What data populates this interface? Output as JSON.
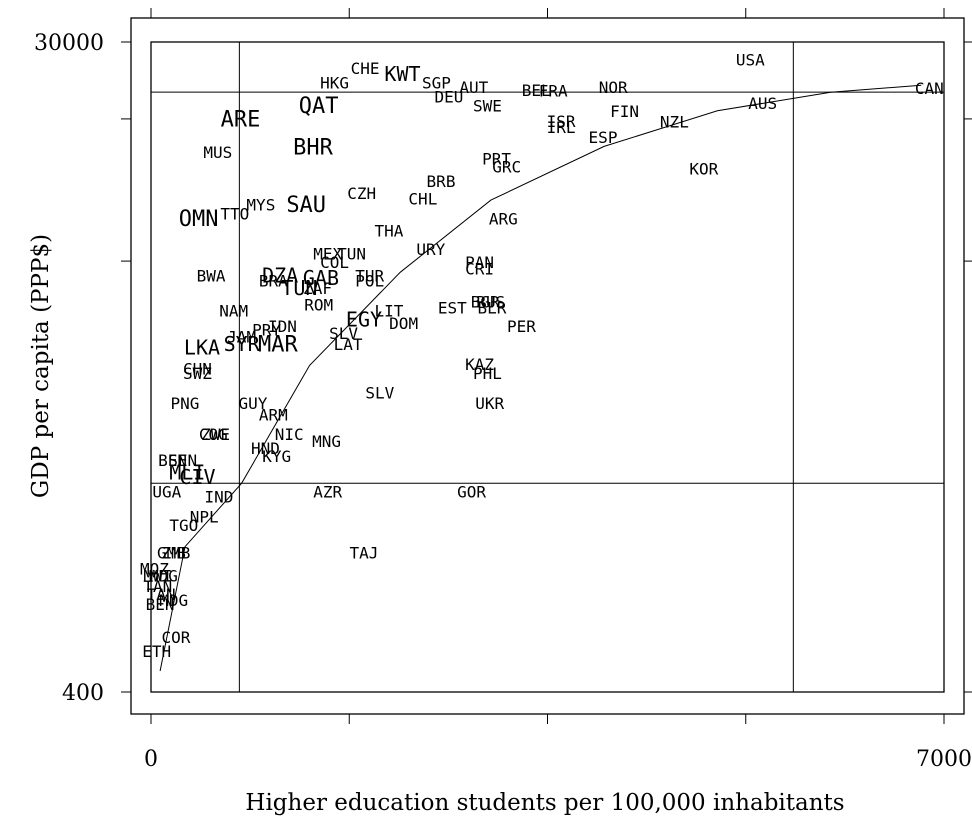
{
  "chart_data": {
    "type": "scatter",
    "title": "",
    "xlabel": "Higher education students per 100,000 inhabitants",
    "ylabel": "GDP per capita (PPP$)",
    "xlim": [
      0,
      7000
    ],
    "ylim": [
      400,
      30000
    ],
    "yscale": "log",
    "x_tick_labels": [
      {
        "value": 0,
        "label": "0"
      },
      {
        "value": 7000,
        "label": "7000"
      }
    ],
    "y_tick_labels": [
      {
        "value": 400,
        "label": "400"
      },
      {
        "value": 30000,
        "label": "30000"
      }
    ],
    "x_tick_values": [
      0,
      1750,
      3500,
      5250,
      7000
    ],
    "y_tick_values": [
      400,
      7000,
      18000,
      30000
    ],
    "reference_lines": {
      "vertical": [
        780,
        5670
      ],
      "horizontal": [
        1600,
        21500
      ]
    },
    "fit_curve": {
      "points": [
        [
          80,
          460
        ],
        [
          300,
          1050
        ],
        [
          800,
          1600
        ],
        [
          1400,
          3500
        ],
        [
          2200,
          6500
        ],
        [
          3000,
          10500
        ],
        [
          4000,
          15000
        ],
        [
          5000,
          19000
        ],
        [
          6000,
          21500
        ],
        [
          6800,
          22500
        ]
      ]
    },
    "points": [
      {
        "label": "USA",
        "x": 5290,
        "y": 26400,
        "size": 16
      },
      {
        "label": "CAN",
        "x": 6870,
        "y": 21900,
        "size": 16
      },
      {
        "label": "CHE",
        "x": 1890,
        "y": 25000,
        "size": 16
      },
      {
        "label": "KWT",
        "x": 2220,
        "y": 24000,
        "size": 20
      },
      {
        "label": "HKG",
        "x": 1620,
        "y": 22700,
        "size": 16
      },
      {
        "label": "SGP",
        "x": 2520,
        "y": 22700,
        "size": 16
      },
      {
        "label": "AUT",
        "x": 2850,
        "y": 22000,
        "size": 16
      },
      {
        "label": "NOR",
        "x": 4080,
        "y": 22000,
        "size": 16
      },
      {
        "label": "FRA",
        "x": 3550,
        "y": 21500,
        "size": 16
      },
      {
        "label": "BEL",
        "x": 3400,
        "y": 21600,
        "size": 16
      },
      {
        "label": "DEU",
        "x": 2630,
        "y": 20700,
        "size": 16
      },
      {
        "label": "SWE",
        "x": 2970,
        "y": 19500,
        "size": 16
      },
      {
        "label": "AUS",
        "x": 5400,
        "y": 19800,
        "size": 16
      },
      {
        "label": "FIN",
        "x": 4180,
        "y": 18800,
        "size": 16
      },
      {
        "label": "NZL",
        "x": 4620,
        "y": 17500,
        "size": 16
      },
      {
        "label": "ISR",
        "x": 3620,
        "y": 17600,
        "size": 16
      },
      {
        "label": "IRL",
        "x": 3620,
        "y": 16900,
        "size": 16
      },
      {
        "label": "ESP",
        "x": 3990,
        "y": 15800,
        "size": 16
      },
      {
        "label": "ARE",
        "x": 790,
        "y": 17800,
        "size": 22
      },
      {
        "label": "QAT",
        "x": 1480,
        "y": 19500,
        "size": 22
      },
      {
        "label": "BHR",
        "x": 1430,
        "y": 14800,
        "size": 22
      },
      {
        "label": "MUS",
        "x": 590,
        "y": 14300,
        "size": 16
      },
      {
        "label": "PRT",
        "x": 3050,
        "y": 13700,
        "size": 16
      },
      {
        "label": "GRC",
        "x": 3140,
        "y": 13000,
        "size": 16
      },
      {
        "label": "KOR",
        "x": 4880,
        "y": 12800,
        "size": 16
      },
      {
        "label": "BRB",
        "x": 2560,
        "y": 11800,
        "size": 16
      },
      {
        "label": "CZH",
        "x": 1860,
        "y": 10900,
        "size": 16
      },
      {
        "label": "CHL",
        "x": 2400,
        "y": 10500,
        "size": 16
      },
      {
        "label": "SAU",
        "x": 1370,
        "y": 10100,
        "size": 22
      },
      {
        "label": "MYS",
        "x": 970,
        "y": 10100,
        "size": 16
      },
      {
        "label": "TTO",
        "x": 740,
        "y": 9500,
        "size": 16
      },
      {
        "label": "OMN",
        "x": 420,
        "y": 9200,
        "size": 22
      },
      {
        "label": "ARG",
        "x": 3110,
        "y": 9200,
        "size": 16
      },
      {
        "label": "THA",
        "x": 2100,
        "y": 8500,
        "size": 16
      },
      {
        "label": "URY",
        "x": 2470,
        "y": 7500,
        "size": 16
      },
      {
        "label": "MEX",
        "x": 1560,
        "y": 7300,
        "size": 16
      },
      {
        "label": "TUN",
        "x": 1770,
        "y": 7300,
        "size": 16
      },
      {
        "label": "COL",
        "x": 1620,
        "y": 6900,
        "size": 16
      },
      {
        "label": "PAN",
        "x": 2900,
        "y": 6900,
        "size": 16
      },
      {
        "label": "CRI",
        "x": 2900,
        "y": 6600,
        "size": 16
      },
      {
        "label": "BWA",
        "x": 530,
        "y": 6300,
        "size": 16
      },
      {
        "label": "BRA",
        "x": 1080,
        "y": 6100,
        "size": 16
      },
      {
        "label": "DZA",
        "x": 1140,
        "y": 6300,
        "size": 20
      },
      {
        "label": "GAB",
        "x": 1500,
        "y": 6200,
        "size": 20
      },
      {
        "label": "TUR",
        "x": 1930,
        "y": 6300,
        "size": 16
      },
      {
        "label": "POL",
        "x": 1930,
        "y": 6100,
        "size": 16
      },
      {
        "label": "TUN",
        "x": 1310,
        "y": 5800,
        "size": 20
      },
      {
        "label": "ZAF",
        "x": 1470,
        "y": 5800,
        "size": 16
      },
      {
        "label": "ROM",
        "x": 1480,
        "y": 5200,
        "size": 16
      },
      {
        "label": "BGR",
        "x": 2950,
        "y": 5300,
        "size": 16
      },
      {
        "label": "RUS",
        "x": 3000,
        "y": 5300,
        "size": 16
      },
      {
        "label": "BLR",
        "x": 3010,
        "y": 5100,
        "size": 16
      },
      {
        "label": "EST",
        "x": 2660,
        "y": 5100,
        "size": 16
      },
      {
        "label": "NAM",
        "x": 730,
        "y": 5000,
        "size": 16
      },
      {
        "label": "LIT",
        "x": 2100,
        "y": 5000,
        "size": 16
      },
      {
        "label": "EGY",
        "x": 1880,
        "y": 4700,
        "size": 20
      },
      {
        "label": "DOM",
        "x": 2230,
        "y": 4600,
        "size": 16
      },
      {
        "label": "PER",
        "x": 3270,
        "y": 4500,
        "size": 16
      },
      {
        "label": "IDN",
        "x": 1160,
        "y": 4500,
        "size": 16
      },
      {
        "label": "PRY",
        "x": 1020,
        "y": 4400,
        "size": 16
      },
      {
        "label": "JAM",
        "x": 800,
        "y": 4200,
        "size": 16
      },
      {
        "label": "SLV",
        "x": 1700,
        "y": 4300,
        "size": 16
      },
      {
        "label": "LKA",
        "x": 450,
        "y": 3900,
        "size": 20
      },
      {
        "label": "SYR",
        "x": 800,
        "y": 4000,
        "size": 20
      },
      {
        "label": "MAR",
        "x": 1120,
        "y": 4000,
        "size": 22
      },
      {
        "label": "LAT",
        "x": 1740,
        "y": 4000,
        "size": 16
      },
      {
        "label": "KAZ",
        "x": 2900,
        "y": 3500,
        "size": 16
      },
      {
        "label": "PHL",
        "x": 2970,
        "y": 3300,
        "size": 16
      },
      {
        "label": "CHN",
        "x": 410,
        "y": 3400,
        "size": 16
      },
      {
        "label": "SWZ",
        "x": 410,
        "y": 3300,
        "size": 16
      },
      {
        "label": "SLV",
        "x": 2020,
        "y": 2900,
        "size": 16
      },
      {
        "label": "PNG",
        "x": 300,
        "y": 2700,
        "size": 16
      },
      {
        "label": "GUY",
        "x": 900,
        "y": 2700,
        "size": 16
      },
      {
        "label": "UKR",
        "x": 2990,
        "y": 2700,
        "size": 16
      },
      {
        "label": "ARM",
        "x": 1080,
        "y": 2500,
        "size": 16
      },
      {
        "label": "COG",
        "x": 550,
        "y": 2200,
        "size": 16
      },
      {
        "label": "ZWE",
        "x": 570,
        "y": 2200,
        "size": 16
      },
      {
        "label": "NIC",
        "x": 1220,
        "y": 2200,
        "size": 16
      },
      {
        "label": "MNG",
        "x": 1550,
        "y": 2100,
        "size": 16
      },
      {
        "label": "HND",
        "x": 1010,
        "y": 2000,
        "size": 16
      },
      {
        "label": "KYG",
        "x": 1110,
        "y": 1900,
        "size": 16
      },
      {
        "label": "BEN",
        "x": 190,
        "y": 1850,
        "size": 16
      },
      {
        "label": "SEN",
        "x": 280,
        "y": 1850,
        "size": 16
      },
      {
        "label": "MLI",
        "x": 320,
        "y": 1700,
        "size": 20
      },
      {
        "label": "CIV",
        "x": 410,
        "y": 1650,
        "size": 20
      },
      {
        "label": "UGA",
        "x": 140,
        "y": 1500,
        "size": 16
      },
      {
        "label": "IND",
        "x": 600,
        "y": 1450,
        "size": 16
      },
      {
        "label": "AZR",
        "x": 1560,
        "y": 1500,
        "size": 16
      },
      {
        "label": "GOR",
        "x": 2830,
        "y": 1500,
        "size": 16
      },
      {
        "label": "NPL",
        "x": 470,
        "y": 1270,
        "size": 16
      },
      {
        "label": "TGO",
        "x": 290,
        "y": 1200,
        "size": 16
      },
      {
        "label": "TAJ",
        "x": 1880,
        "y": 1000,
        "size": 16
      },
      {
        "label": "GMB",
        "x": 180,
        "y": 1000,
        "size": 16
      },
      {
        "label": "ZMB",
        "x": 220,
        "y": 1000,
        "size": 16
      },
      {
        "label": "MOZ",
        "x": 30,
        "y": 900,
        "size": 16
      },
      {
        "label": "MWI",
        "x": 60,
        "y": 860,
        "size": 16
      },
      {
        "label": "MDG",
        "x": 110,
        "y": 860,
        "size": 16
      },
      {
        "label": "TAN",
        "x": 60,
        "y": 800,
        "size": 16
      },
      {
        "label": "TAN",
        "x": 90,
        "y": 760,
        "size": 16
      },
      {
        "label": "MDG",
        "x": 200,
        "y": 730,
        "size": 16
      },
      {
        "label": "BEN",
        "x": 80,
        "y": 710,
        "size": 16
      },
      {
        "label": "COR",
        "x": 220,
        "y": 570,
        "size": 16
      },
      {
        "label": "ETH",
        "x": 50,
        "y": 520,
        "size": 16
      }
    ]
  }
}
